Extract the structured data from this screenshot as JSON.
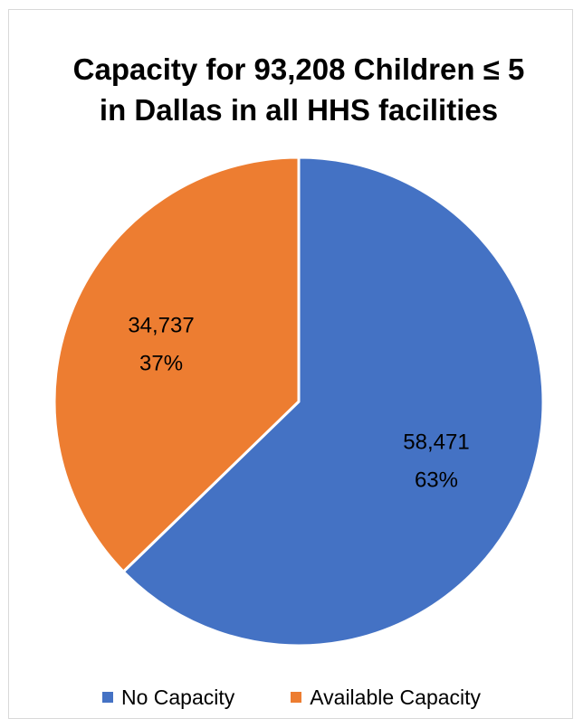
{
  "chart_data": {
    "type": "pie",
    "title": [
      "Capacity for 93,208 Children ≤ 5",
      "in Dallas in all HHS facilities"
    ],
    "series": [
      {
        "name": "No Capacity",
        "value": 58471,
        "value_label": "58,471",
        "percent_label": "63%",
        "color": "#4472C4"
      },
      {
        "name": "Available Capacity",
        "value": 34737,
        "value_label": "34,737",
        "percent_label": "37%",
        "color": "#ED7D31"
      }
    ],
    "start_angle": "12 o'clock",
    "direction": "clockwise",
    "legend_position": "bottom"
  }
}
